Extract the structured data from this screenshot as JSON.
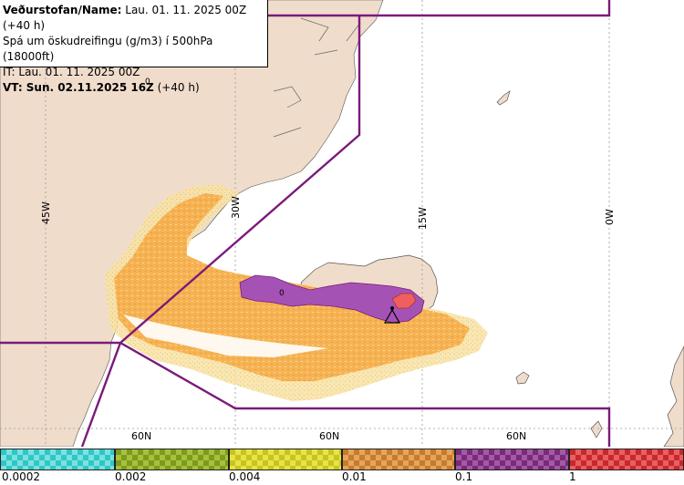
{
  "header": {
    "line1_bold": "Veðurstofan/Name:",
    "line1_rest": " Lau. 01. 11. 2025 00Z (+40 h)",
    "line2": "Spá um öskudreifingu (g/m3) í 500hPa (18000ft)",
    "line3": "IT: Lau. 01. 11. 2025 00Z",
    "line4_bold": "VT: Sun. 02.11.2025 16Z",
    "line4_rest": " (+40 h)"
  },
  "graticule": {
    "lon_labels": [
      "45W",
      "30W",
      "15W",
      "0W"
    ],
    "lat_labels": [
      "60N",
      "60N",
      "60N"
    ],
    "contour_labels": [
      "0",
      "0"
    ]
  },
  "colors": {
    "land": "#f0dccb",
    "sea": "#ffffff",
    "boundary": "#7a1a7a",
    "ash_low": "#f6b04e",
    "ash_mid": "#a552b5",
    "ash_high": "#ef5f5f"
  },
  "legend": {
    "ticks": [
      "0.0002",
      "0.002",
      "0.004",
      "0.01",
      "0.1",
      "1"
    ],
    "swatches": [
      {
        "color_a": "#2ec7c7",
        "color_b": "#7fe0e0",
        "name": "cyan"
      },
      {
        "color_a": "#7c9b1c",
        "color_b": "#a7c03f",
        "name": "green"
      },
      {
        "color_a": "#c8c41a",
        "color_b": "#e6e34d",
        "name": "yellow"
      },
      {
        "color_a": "#c97a2a",
        "color_b": "#e2a65e",
        "name": "orange"
      },
      {
        "color_a": "#7a2a7a",
        "color_b": "#a25aa2",
        "name": "purple"
      },
      {
        "color_a": "#c8282d",
        "color_b": "#e76062",
        "name": "red"
      }
    ]
  }
}
